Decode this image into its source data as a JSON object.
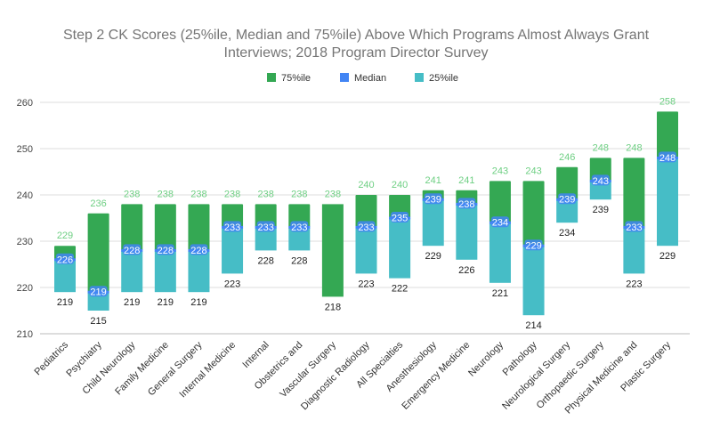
{
  "chart_data": {
    "type": "bar",
    "title_lines": [
      "Step 2 CK Scores (25%ile, Median and 75%ile) Above Which Programs Almost Always Grant",
      "Interviews; 2018 Program Director Survey"
    ],
    "legend": [
      {
        "name": "75%ile",
        "color": "#34a853"
      },
      {
        "name": "Median",
        "color": "#4285f4"
      },
      {
        "name": "25%ile",
        "color": "#46bdc6"
      }
    ],
    "legend_placement": "top",
    "ylim": [
      210,
      260
    ],
    "yticks": [
      210,
      220,
      230,
      240,
      250,
      260
    ],
    "grid": true,
    "categories": [
      "Pediatrics",
      "Psychiatry",
      "Child Neurology",
      "Family Medicine",
      "General Surgery",
      "Internal Medicine",
      "Internal",
      "Obstetrics and",
      "Vascular Surgery",
      "Diagnostic Radiology",
      "All Specialties",
      "Anesthesiology",
      "Emergency Medicine",
      "Neurology",
      "Pathology",
      "Neurological Surgery",
      "Orthopaedic Surgery",
      "Physical Medicine and",
      "Plastic Surgery"
    ],
    "series": [
      {
        "name": "25%ile",
        "values": [
          219,
          215,
          219,
          219,
          219,
          223,
          228,
          228,
          218,
          223,
          222,
          229,
          226,
          221,
          214,
          234,
          239,
          223,
          229
        ]
      },
      {
        "name": "Median",
        "values": [
          226,
          219,
          228,
          228,
          228,
          233,
          233,
          233,
          null,
          233,
          235,
          239,
          238,
          234,
          229,
          239,
          243,
          233,
          248
        ]
      },
      {
        "name": "75%ile",
        "values": [
          229,
          236,
          238,
          238,
          238,
          238,
          238,
          238,
          238,
          240,
          240,
          241,
          241,
          243,
          243,
          246,
          248,
          248,
          258
        ]
      }
    ]
  }
}
